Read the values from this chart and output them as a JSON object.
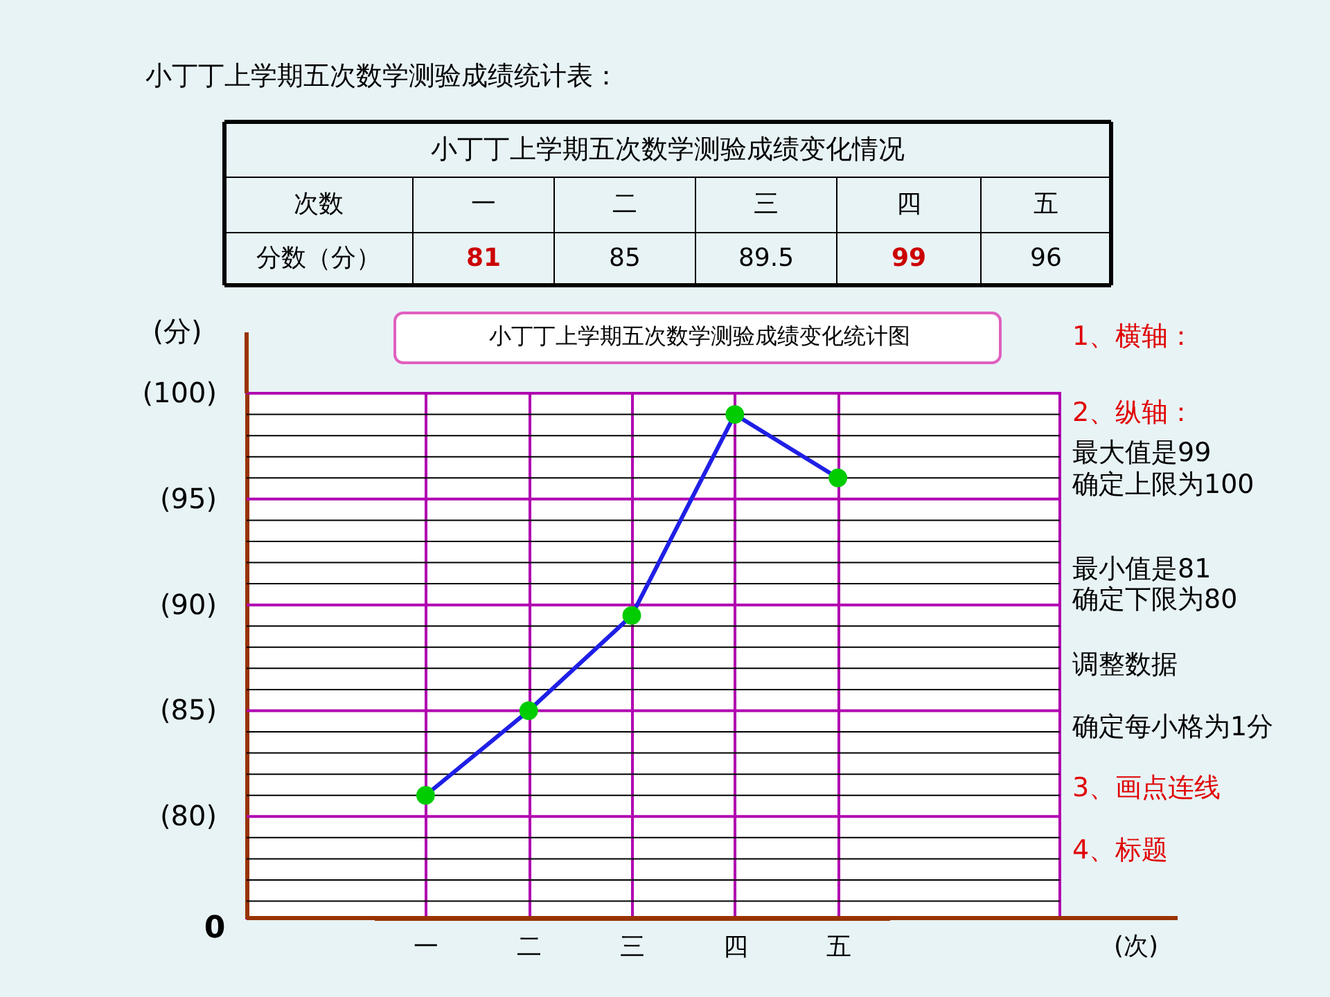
{
  "chart_data": {
    "type": "line",
    "title": "小丁丁上学期五次数学测验成绩变化统计图",
    "ylabel": "(分)",
    "categories": [
      "一",
      "二",
      "三",
      "四",
      "五"
    ],
    "series": [
      {
        "color": "#1f1fe6",
        "values": [
          81,
          85,
          89.5,
          99,
          96
        ]
      }
    ],
    "ylim": [
      75.2,
      100
    ],
    "yticks": [
      {
        "value": 80,
        "label": "(80)"
      },
      {
        "value": 85,
        "label": "(85)"
      },
      {
        "value": 90,
        "label": "(90)"
      },
      {
        "value": 95,
        "label": "(95)"
      },
      {
        "value": 100,
        "label": "(100)"
      }
    ],
    "grid": true,
    "marker": "circle",
    "line_style": "solid",
    "annotations": [
      "小丁丁上学期五次数学测验成绩统计表：",
      "小丁丁上学期五次数学测验成绩变化情况",
      "次数",
      "分数（分）",
      "1、横轴：",
      "2、纵轴：",
      "最大值是99",
      "确定上限为100",
      "最小值是81",
      "确定下限为80",
      "调整数据",
      "确定每小格为1分",
      "3、画点连线",
      "4、标题",
      "0",
      "(次)",
      "81",
      "85",
      "89.5",
      "99",
      "96"
    ]
  }
}
